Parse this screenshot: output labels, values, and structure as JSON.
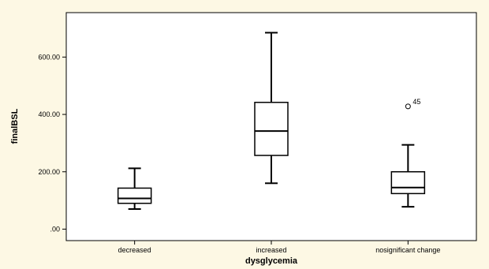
{
  "chart_data": {
    "type": "boxplot",
    "xlabel": "dysglycemia",
    "ylabel": "finalBSL",
    "categories": [
      "decreased",
      "increased",
      "nosignificant change"
    ],
    "boxes": [
      {
        "category": "decreased",
        "min": 70,
        "q1": 90,
        "median": 107,
        "q3": 143,
        "max": 212,
        "outliers": []
      },
      {
        "category": "increased",
        "min": 160,
        "q1": 257,
        "median": 342,
        "q3": 442,
        "max": 685,
        "outliers": []
      },
      {
        "category": "nosignificant change",
        "min": 78,
        "q1": 124,
        "median": 145,
        "q3": 200,
        "max": 294,
        "outliers": [
          {
            "value": 428,
            "label": "45"
          }
        ]
      }
    ],
    "yticks": [
      {
        "value": 0,
        "label": ".00"
      },
      {
        "value": 200,
        "label": "200.00"
      },
      {
        "value": 400,
        "label": "400.00"
      },
      {
        "value": 600,
        "label": "600.00"
      }
    ],
    "ylim": [
      -40,
      755
    ],
    "grid": false,
    "colors": {
      "background": "#fdf8e4",
      "plot_area": "#ffffff",
      "box_fill": "#ffffff",
      "stroke": "#000000"
    }
  }
}
